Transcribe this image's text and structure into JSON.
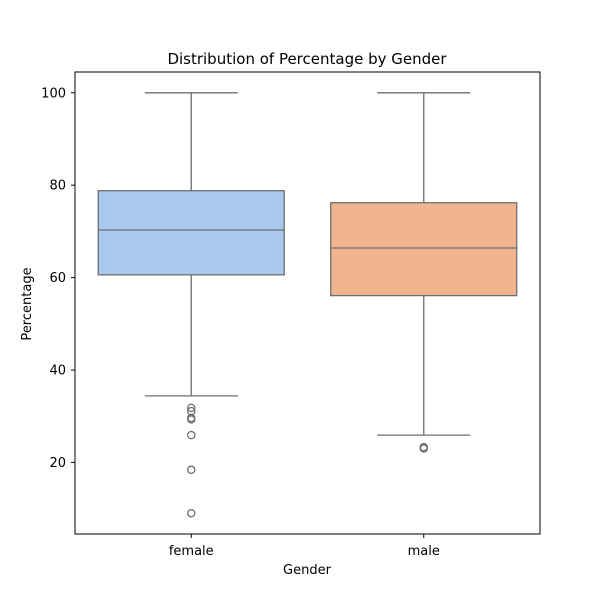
{
  "chart_data": {
    "type": "box",
    "title": "Distribution of Percentage by Gender",
    "xlabel": "Gender",
    "ylabel": "Percentage",
    "ylim": [
      4.5,
      104.5
    ],
    "yticks": [
      20,
      40,
      60,
      80,
      100
    ],
    "categories": [
      "female",
      "male"
    ],
    "grid": false,
    "legend": "none",
    "median_color": "#6e6e6e",
    "boxes": [
      {
        "category": "female",
        "color": "#a8c8ee",
        "whisker_low": 34.4,
        "q1": 60.6,
        "median": 70.3,
        "q3": 78.8,
        "whisker_high": 100,
        "outliers": [
          31.8,
          31.1,
          29.6,
          29.3,
          25.9,
          18.4,
          9.0
        ]
      },
      {
        "category": "male",
        "color": "#f2b48f",
        "whisker_low": 25.9,
        "q1": 56.1,
        "median": 66.4,
        "q3": 76.2,
        "whisker_high": 100,
        "outliers": [
          23.3,
          23.0
        ]
      }
    ]
  }
}
